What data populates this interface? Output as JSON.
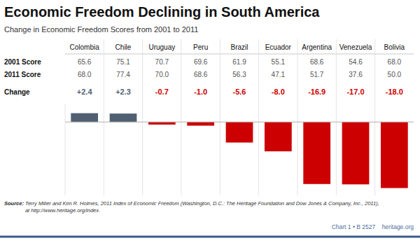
{
  "chart_data": {
    "type": "bar",
    "title": "Economic Freedom Declining in South America",
    "subtitle": "Change in Economic Freedom Scores from 2001 to 2011",
    "categories": [
      "Colombia",
      "Chile",
      "Uruguay",
      "Peru",
      "Brazil",
      "Ecuador",
      "Argentina",
      "Venezuela",
      "Bolivia"
    ],
    "values": [
      2.4,
      2.3,
      -0.7,
      -1.0,
      -5.6,
      -8.0,
      -16.9,
      -17.0,
      -18.0
    ],
    "value_labels": [
      "+2.4",
      "+2.3",
      "-0.7",
      "-1.0",
      "-5.6",
      "-8.0",
      "-16.9",
      "-17.0",
      "-18.0"
    ],
    "value_name": "Change",
    "data_labels": true,
    "colors": [
      "#506070",
      "#506070",
      "#cc0000",
      "#cc0000",
      "#cc0000",
      "#cc0000",
      "#cc0000",
      "#cc0000",
      "#cc0000"
    ],
    "rows": [
      {
        "name": "2001 Score",
        "values": [
          65.6,
          75.1,
          70.7,
          69.6,
          61.9,
          55.1,
          68.6,
          54.6,
          68.0
        ]
      },
      {
        "name": "2011 Score",
        "values": [
          68.0,
          77.4,
          70.0,
          68.6,
          56.3,
          47.1,
          51.7,
          37.6,
          50.0
        ]
      }
    ],
    "ylim": [
      -20,
      5
    ],
    "tick_labels": false,
    "grid": false,
    "source_label": "Source:",
    "source": " Terry Miller and Kim R. Holmes, 2011 Index of Economic Freedom (Washington, D.C.: The Heritage Foundation and Dow Jones & Company, Inc., 2011),\nat http://www.heritage.org/index.",
    "footer": "Chart 1 • B 2527    heritage.org"
  }
}
